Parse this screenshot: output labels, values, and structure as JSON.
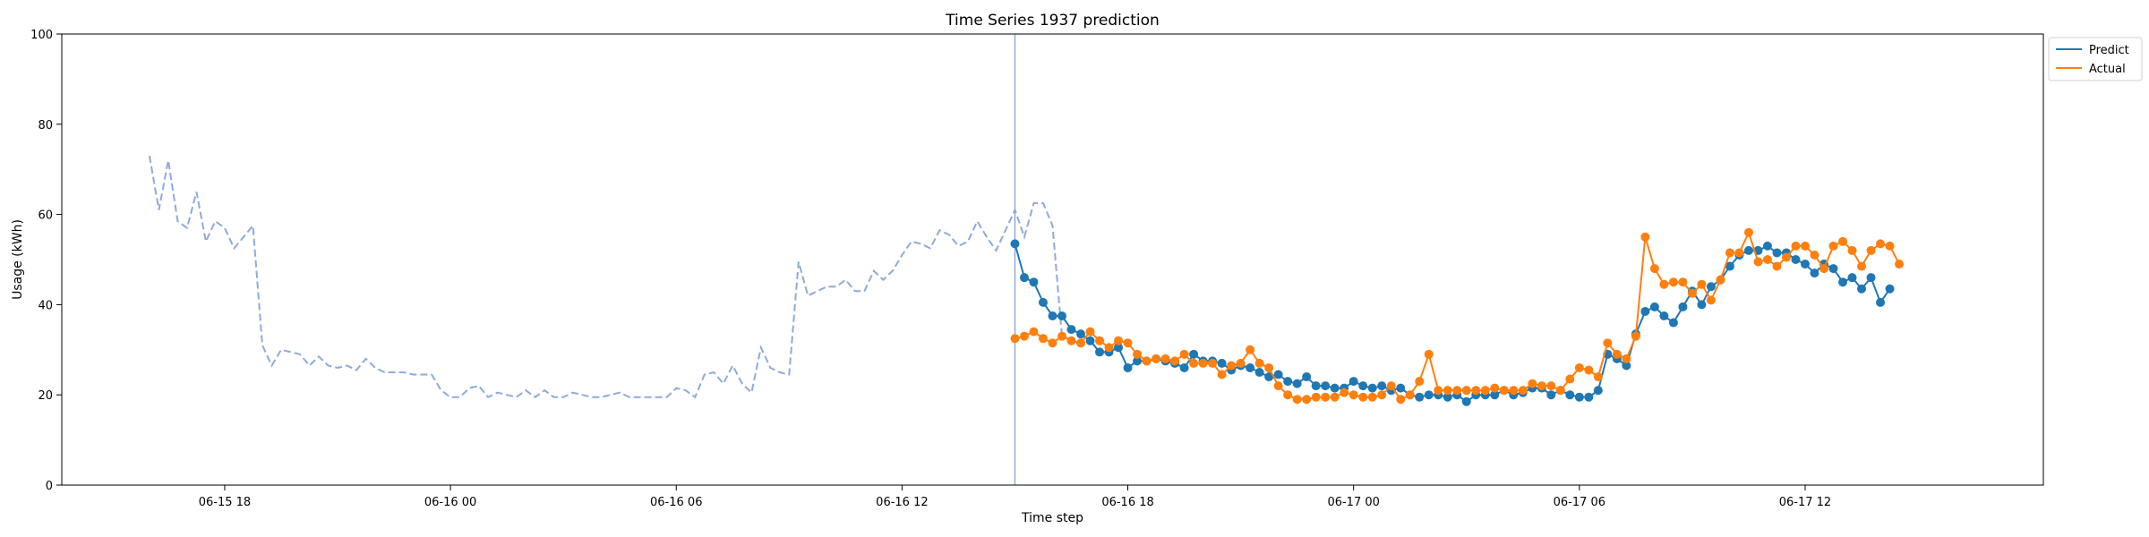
{
  "chart_data": {
    "type": "line",
    "title": "Time Series 1937 prediction",
    "xlabel": "Time step",
    "ylabel": "Usage (kWh)",
    "ylim": [
      0,
      100
    ],
    "yticks": [
      0,
      20,
      40,
      60,
      80,
      100
    ],
    "x_unit": "hours from 2023-06-15 16:00",
    "xlim": [
      -2.33,
      50.33
    ],
    "xticks": [
      {
        "label": "06-15 18",
        "x": 2
      },
      {
        "label": "06-16 00",
        "x": 8
      },
      {
        "label": "06-16 06",
        "x": 14
      },
      {
        "label": "06-16 12",
        "x": 20
      },
      {
        "label": "06-16 18",
        "x": 26
      },
      {
        "label": "06-17 00",
        "x": 32
      },
      {
        "label": "06-17 06",
        "x": 38
      },
      {
        "label": "06-17 12",
        "x": 44
      }
    ],
    "legend_position": "top-right-outside",
    "forecast_start_x": 23,
    "history": {
      "color": "#8faadc",
      "x_start": 0,
      "step": 0.25,
      "values": [
        73.0,
        61.0,
        72.0,
        58.5,
        57.0,
        65.0,
        54.0,
        58.5,
        57.0,
        52.5,
        55.0,
        57.5,
        31.0,
        26.5,
        30.0,
        29.5,
        29.0,
        26.5,
        28.5,
        26.5,
        26.0,
        26.5,
        25.5,
        28.0,
        26.0,
        25.0,
        25.0,
        25.0,
        24.5,
        24.5,
        24.5,
        21.0,
        19.5,
        19.5,
        21.5,
        22.0,
        19.5,
        20.5,
        20.0,
        19.5,
        21.0,
        19.5,
        21.0,
        19.5,
        19.5,
        20.5,
        20.0,
        19.5,
        19.5,
        20.0,
        20.5,
        19.5,
        19.5,
        19.5,
        19.5,
        19.5,
        21.5,
        21.0,
        19.5,
        24.5,
        25.0,
        22.5,
        26.5,
        22.5,
        20.5,
        30.5,
        26.0,
        25.0,
        24.5,
        49.5,
        42.0,
        43.0,
        44.0,
        44.0,
        45.5,
        43.0,
        43.0,
        47.5,
        45.5,
        47.5,
        51.0,
        54.0,
        53.5,
        52.5,
        56.5,
        55.5,
        53.0,
        54.0,
        58.5,
        55.0,
        52.0,
        56.5,
        61.0,
        55.0,
        62.5,
        62.5,
        57.5,
        33.0
      ]
    },
    "series": [
      {
        "name": "Predict",
        "color": "#1f77b4",
        "x_start": 23,
        "step": 0.25,
        "values": [
          53.5,
          46.0,
          45.0,
          40.5,
          37.5,
          37.5,
          34.5,
          33.5,
          32.0,
          29.5,
          29.5,
          30.5,
          26.0,
          27.5,
          27.5,
          28.0,
          27.5,
          27.0,
          26.0,
          29.0,
          27.5,
          27.5,
          27.0,
          25.5,
          26.5,
          26.0,
          25.0,
          24.0,
          24.5,
          23.0,
          22.5,
          24.0,
          22.0,
          22.0,
          21.5,
          21.5,
          23.0,
          22.0,
          21.5,
          22.0,
          21.0,
          21.5,
          20.0,
          19.5,
          20.0,
          20.0,
          19.5,
          20.0,
          18.5,
          20.0,
          20.0,
          20.0,
          21.0,
          20.0,
          20.5,
          21.5,
          21.5,
          20.0,
          21.0,
          20.0,
          19.5,
          19.5,
          21.0,
          29.0,
          28.0,
          26.5,
          33.5,
          38.5,
          39.5,
          37.5,
          36.0,
          39.5,
          43.0,
          40.0,
          44.0,
          45.5,
          48.5,
          51.0,
          52.0,
          52.0,
          53.0,
          51.5,
          51.5,
          50.0,
          49.0,
          47.0,
          49.0,
          48.0,
          45.0,
          46.0,
          43.5,
          46.0,
          40.5,
          43.5
        ]
      },
      {
        "name": "Actual",
        "color": "#ff7f0e",
        "x_start": 23,
        "step": 0.25,
        "values": [
          32.5,
          33.0,
          34.0,
          32.5,
          31.5,
          33.0,
          32.0,
          31.5,
          34.0,
          32.0,
          30.5,
          32.0,
          31.5,
          29.0,
          27.5,
          28.0,
          28.0,
          27.5,
          29.0,
          27.0,
          27.0,
          27.0,
          24.5,
          26.5,
          27.0,
          30.0,
          27.0,
          26.0,
          22.0,
          20.0,
          19.0,
          19.0,
          19.5,
          19.5,
          19.5,
          20.5,
          20.0,
          19.5,
          19.5,
          20.0,
          22.0,
          19.0,
          20.0,
          23.0,
          29.0,
          21.0,
          21.0,
          21.0,
          21.0,
          21.0,
          21.0,
          21.5,
          21.0,
          21.0,
          21.0,
          22.5,
          22.0,
          22.0,
          21.0,
          23.5,
          26.0,
          25.5,
          24.0,
          31.5,
          29.0,
          28.0,
          33.0,
          55.0,
          48.0,
          44.5,
          45.0,
          45.0,
          42.5,
          44.5,
          41.0,
          45.5,
          51.5,
          51.5,
          56.0,
          49.5,
          50.0,
          48.5,
          50.5,
          53.0,
          53.0,
          51.0,
          48.0,
          53.0,
          54.0,
          52.0,
          48.5,
          52.0,
          53.5,
          53.0,
          49.0
        ]
      }
    ]
  }
}
